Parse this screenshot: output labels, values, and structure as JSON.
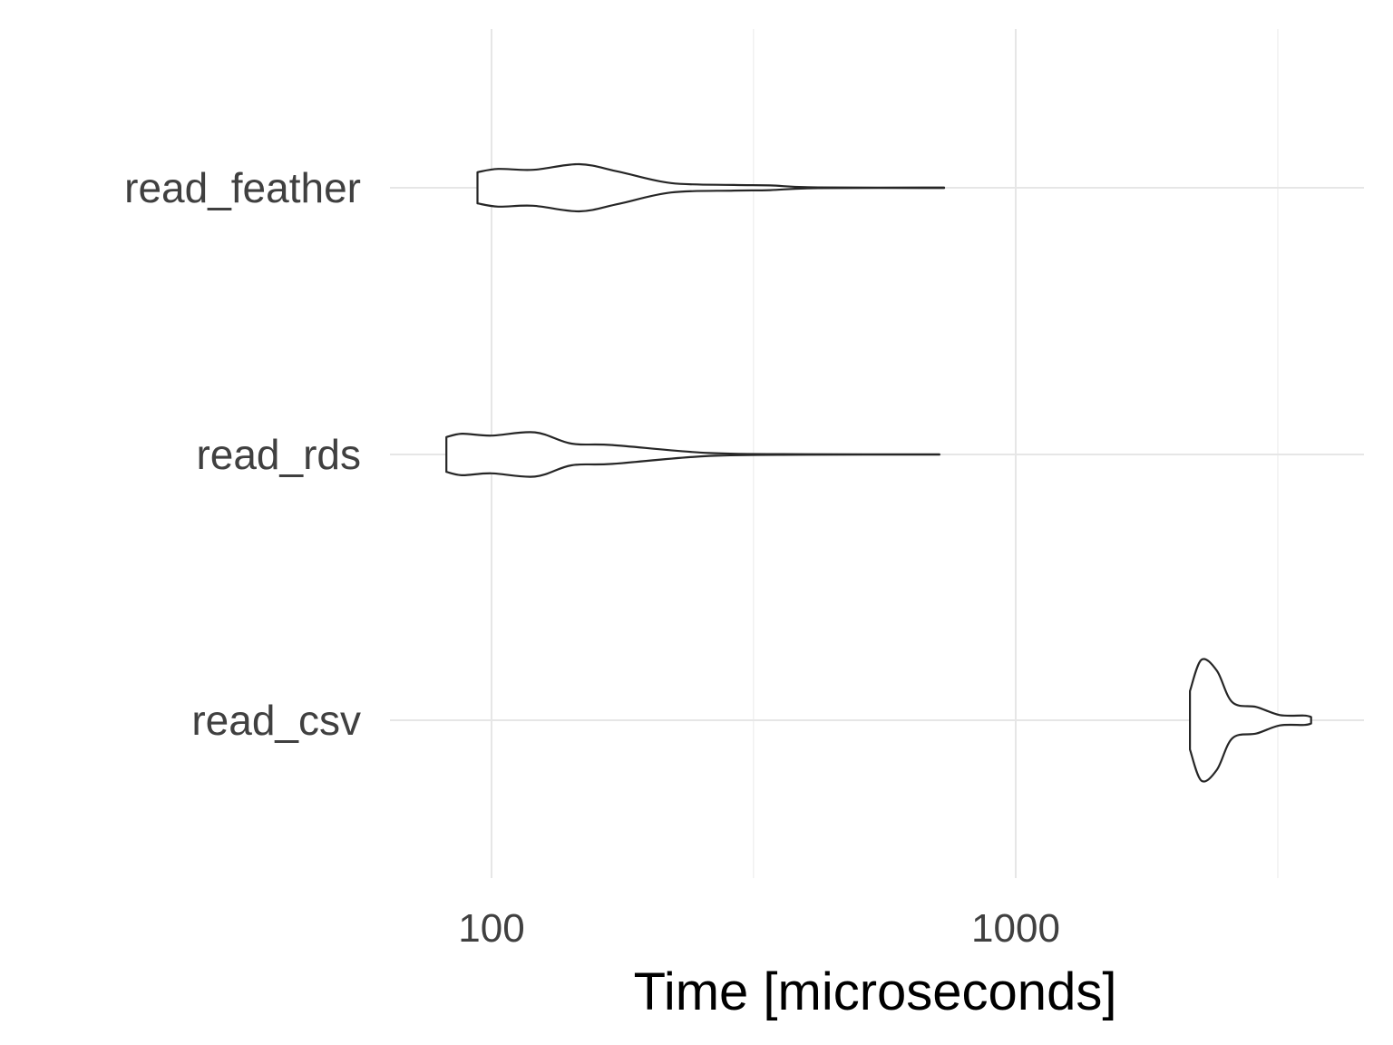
{
  "chart_data": {
    "type": "violin",
    "xlabel": "Time [microseconds]",
    "ylabel": "",
    "x_scale": "log10",
    "xlim": [
      66,
      3900
    ],
    "x_ticks": [
      100,
      1000
    ],
    "x_tick_labels": [
      "100",
      "1000"
    ],
    "x_minor_gridlines": [
      316,
      3162
    ],
    "grid": true,
    "categories": [
      "read_feather",
      "read_rds",
      "read_csv"
    ],
    "series": [
      {
        "name": "read_feather",
        "min": 94,
        "max": 730,
        "density_profile": [
          [
            94,
            0.33
          ],
          [
            103,
            0.4
          ],
          [
            120,
            0.38
          ],
          [
            147,
            0.5
          ],
          [
            175,
            0.34
          ],
          [
            220,
            0.1
          ],
          [
            290,
            0.06
          ],
          [
            340,
            0.05
          ],
          [
            420,
            0.008
          ],
          [
            730,
            0.005
          ]
        ]
      },
      {
        "name": "read_rds",
        "min": 82,
        "max": 715,
        "density_profile": [
          [
            82,
            0.37
          ],
          [
            88,
            0.44
          ],
          [
            100,
            0.4
          ],
          [
            121,
            0.47
          ],
          [
            142,
            0.23
          ],
          [
            170,
            0.2
          ],
          [
            260,
            0.03
          ],
          [
            400,
            0.005
          ],
          [
            715,
            0.004
          ]
        ]
      },
      {
        "name": "read_csv",
        "min": 2150,
        "max": 3660,
        "density_profile": [
          [
            2150,
            0.62
          ],
          [
            2260,
            1.28
          ],
          [
            2420,
            1.05
          ],
          [
            2590,
            0.38
          ],
          [
            2880,
            0.28
          ],
          [
            3190,
            0.11
          ],
          [
            3550,
            0.1
          ],
          [
            3660,
            0.07
          ]
        ]
      }
    ]
  }
}
